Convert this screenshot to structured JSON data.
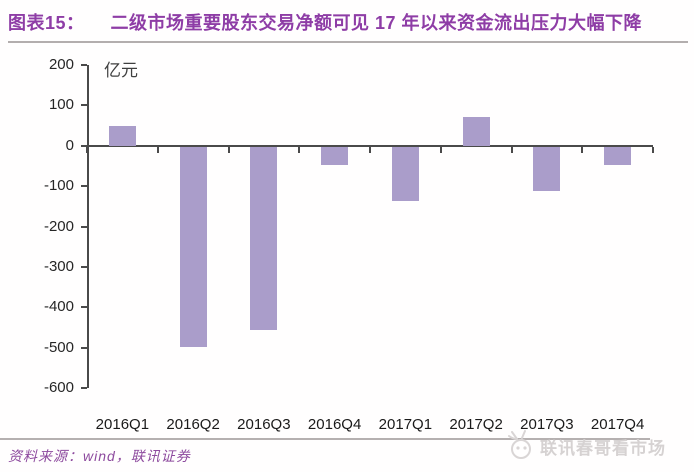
{
  "header": {
    "figure_label": "图表15：",
    "title": "二级市场重要股东交易净额可见 17 年以来资金流出压力大幅下降"
  },
  "chart_data": {
    "type": "bar",
    "title": "二级市场重要股东交易净额（亿元）",
    "unit_label": "亿元",
    "categories": [
      "2016Q1",
      "2016Q2",
      "2016Q3",
      "2016Q4",
      "2017Q1",
      "2017Q2",
      "2017Q3",
      "2017Q4"
    ],
    "values": [
      50,
      -495,
      -455,
      -45,
      -135,
      72,
      -110,
      -45
    ],
    "xlabel": "",
    "ylabel": "亿元",
    "ylim": [
      -600,
      200
    ],
    "yticks": [
      200,
      100,
      0,
      -100,
      -200,
      -300,
      -400,
      -500,
      -600
    ],
    "grid": false,
    "legend_position": "none",
    "bar_color": "#aa9dca"
  },
  "footer": {
    "source": "资料来源：wind，联讯证券",
    "watermark": "联讯春哥看市场"
  },
  "colors": {
    "accent_purple": "#8e3da6",
    "bar_fill": "#aa9dca",
    "axis": "#4a4a4a",
    "rule_gray": "#b3aeae",
    "watermark_gray": "#d6d2d2"
  }
}
